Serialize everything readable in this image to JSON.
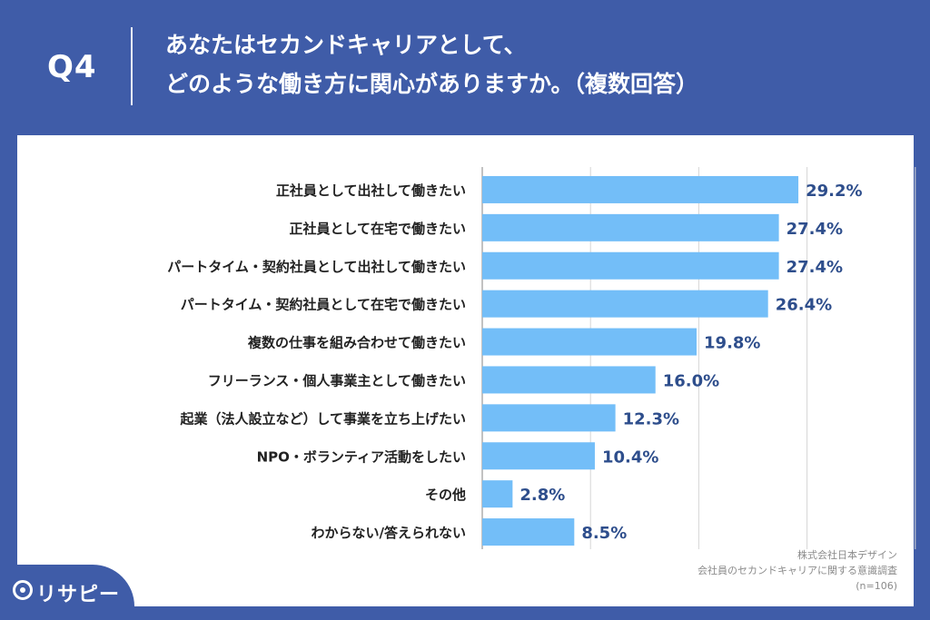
{
  "header": {
    "q_label": "Q4",
    "title_line1": "あなたはセカンドキャリアとして、",
    "title_line2": "どのような働き方に関心がありますか。（複数回答）"
  },
  "source": {
    "company": "株式会社日本デザイン",
    "survey": "会社員のセカンドキャリアに関する意識調査",
    "n": "(n=106)"
  },
  "logo": {
    "text": "リサピー"
  },
  "colors": {
    "bar": "#73BEF8",
    "value": "#2E4E8C",
    "background": "#3F5CA8"
  },
  "chart_data": {
    "type": "bar",
    "orientation": "horizontal",
    "categories": [
      "正社員として出社して働きたい",
      "正社員として在宅で働きたい",
      "パートタイム・契約社員として出社して働きたい",
      "パートタイム・契約社員として在宅で働きたい",
      "複数の仕事を組み合わせて働きたい",
      "フリーランス・個人事業主として働きたい",
      "起業（法人設立など）して事業を立ち上げたい",
      "NPO・ボランティア活動をしたい",
      "その他",
      "わからない/答えられない"
    ],
    "values": [
      29.2,
      27.4,
      27.4,
      26.4,
      19.8,
      16.0,
      12.3,
      10.4,
      2.8,
      8.5
    ],
    "value_labels": [
      "29.2%",
      "27.4%",
      "27.4%",
      "26.4%",
      "19.8%",
      "16.0%",
      "12.3%",
      "10.4%",
      "2.8%",
      "8.5%"
    ],
    "xlim": [
      0,
      40
    ],
    "grid": true
  }
}
